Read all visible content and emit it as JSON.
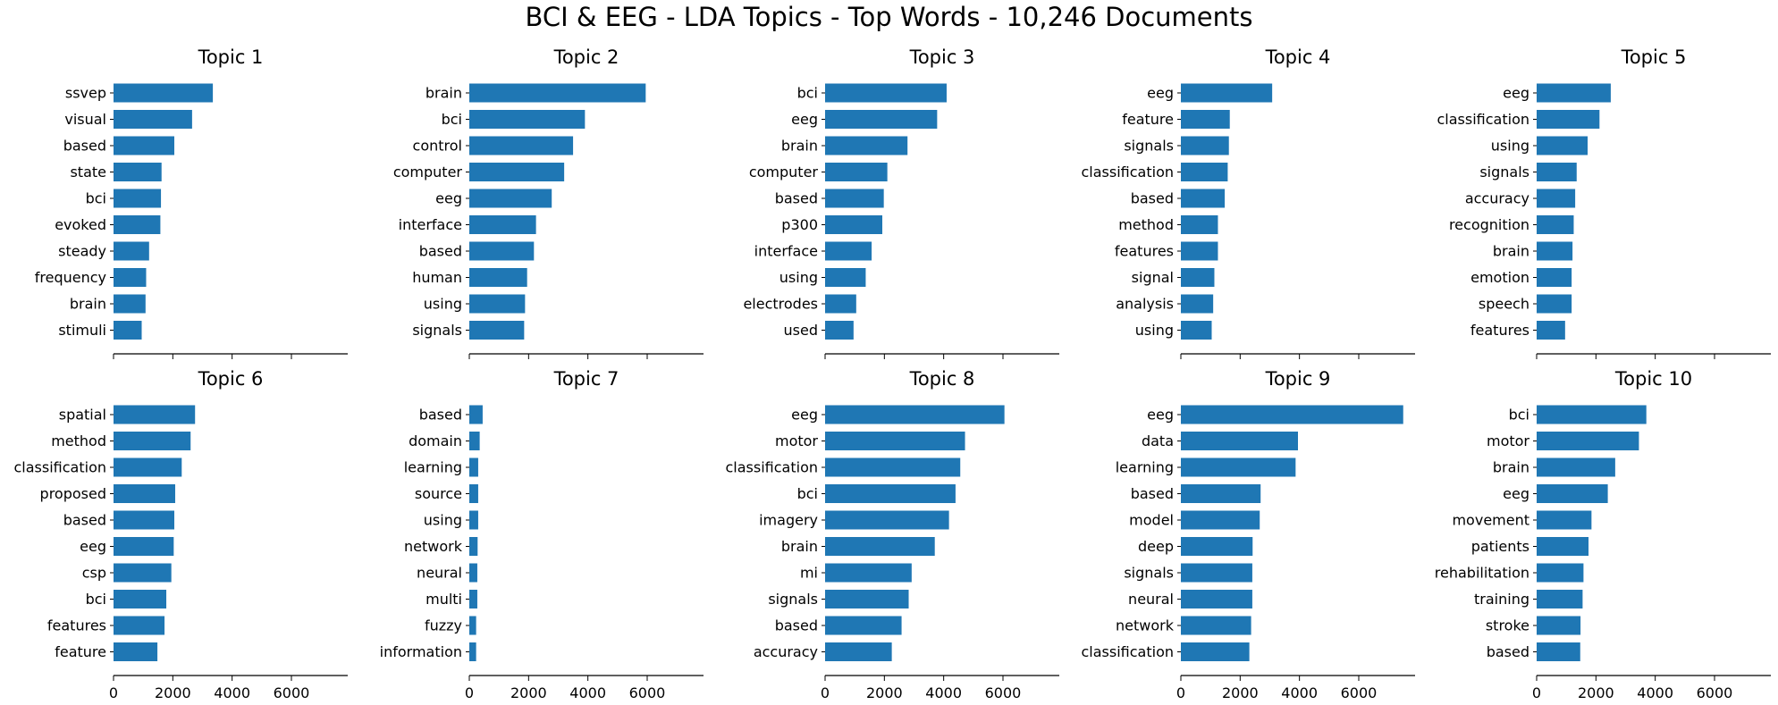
{
  "suptitle": "BCI & EEG - LDA Topics - Top Words - 10,246 Documents",
  "bar_color": "#1f77b4",
  "chart_data": [
    {
      "type": "bar",
      "orientation": "horizontal",
      "title": "Topic 1",
      "categories": [
        "ssvep",
        "visual",
        "based",
        "state",
        "bci",
        "evoked",
        "steady",
        "frequency",
        "brain",
        "stimuli"
      ],
      "values": [
        3350,
        2650,
        2050,
        1620,
        1600,
        1580,
        1200,
        1100,
        1080,
        950
      ],
      "xlim": [
        0,
        7900
      ],
      "xticks": [
        0,
        2000,
        4000,
        6000
      ]
    },
    {
      "type": "bar",
      "orientation": "horizontal",
      "title": "Topic 2",
      "categories": [
        "brain",
        "bci",
        "control",
        "computer",
        "eeg",
        "interface",
        "based",
        "human",
        "using",
        "signals"
      ],
      "values": [
        5950,
        3900,
        3500,
        3200,
        2780,
        2250,
        2180,
        1950,
        1880,
        1850
      ],
      "xlim": [
        0,
        7900
      ],
      "xticks": [
        0,
        2000,
        4000,
        6000
      ]
    },
    {
      "type": "bar",
      "orientation": "horizontal",
      "title": "Topic 3",
      "categories": [
        "bci",
        "eeg",
        "brain",
        "computer",
        "based",
        "p300",
        "interface",
        "using",
        "electrodes",
        "used"
      ],
      "values": [
        4100,
        3780,
        2780,
        2100,
        1980,
        1930,
        1570,
        1370,
        1050,
        960
      ],
      "xlim": [
        0,
        7900
      ],
      "xticks": [
        0,
        2000,
        4000,
        6000
      ]
    },
    {
      "type": "bar",
      "orientation": "horizontal",
      "title": "Topic 4",
      "categories": [
        "eeg",
        "feature",
        "signals",
        "classification",
        "based",
        "method",
        "features",
        "signal",
        "analysis",
        "using"
      ],
      "values": [
        3080,
        1650,
        1620,
        1580,
        1480,
        1250,
        1250,
        1130,
        1090,
        1040
      ],
      "xlim": [
        0,
        7900
      ],
      "xticks": [
        0,
        2000,
        4000,
        6000
      ]
    },
    {
      "type": "bar",
      "orientation": "horizontal",
      "title": "Topic 5",
      "categories": [
        "eeg",
        "classification",
        "using",
        "signals",
        "accuracy",
        "recognition",
        "brain",
        "emotion",
        "speech",
        "features"
      ],
      "values": [
        2500,
        2120,
        1720,
        1350,
        1300,
        1250,
        1210,
        1180,
        1180,
        960
      ],
      "xlim": [
        0,
        7900
      ],
      "xticks": [
        0,
        2000,
        4000,
        6000
      ]
    },
    {
      "type": "bar",
      "orientation": "horizontal",
      "title": "Topic 6",
      "categories": [
        "spatial",
        "method",
        "classification",
        "proposed",
        "based",
        "eeg",
        "csp",
        "bci",
        "features",
        "feature"
      ],
      "values": [
        2750,
        2600,
        2300,
        2080,
        2050,
        2030,
        1950,
        1780,
        1720,
        1480
      ],
      "xlim": [
        0,
        7900
      ],
      "xticks": [
        0,
        2000,
        4000,
        6000
      ]
    },
    {
      "type": "bar",
      "orientation": "horizontal",
      "title": "Topic 7",
      "categories": [
        "based",
        "domain",
        "learning",
        "source",
        "using",
        "network",
        "neural",
        "multi",
        "fuzzy",
        "information"
      ],
      "values": [
        450,
        350,
        300,
        300,
        300,
        280,
        270,
        270,
        230,
        230
      ],
      "xlim": [
        0,
        7900
      ],
      "xticks": [
        0,
        2000,
        4000,
        6000
      ]
    },
    {
      "type": "bar",
      "orientation": "horizontal",
      "title": "Topic 8",
      "categories": [
        "eeg",
        "motor",
        "classification",
        "bci",
        "imagery",
        "brain",
        "mi",
        "signals",
        "based",
        "accuracy"
      ],
      "values": [
        6050,
        4720,
        4560,
        4400,
        4180,
        3700,
        2920,
        2820,
        2580,
        2250
      ],
      "xlim": [
        0,
        7900
      ],
      "xticks": [
        0,
        2000,
        4000,
        6000
      ]
    },
    {
      "type": "bar",
      "orientation": "horizontal",
      "title": "Topic 9",
      "categories": [
        "eeg",
        "data",
        "learning",
        "based",
        "model",
        "deep",
        "signals",
        "neural",
        "network",
        "classification"
      ],
      "values": [
        7500,
        3950,
        3870,
        2690,
        2660,
        2420,
        2410,
        2410,
        2370,
        2310
      ],
      "xlim": [
        0,
        7900
      ],
      "xticks": [
        0,
        2000,
        4000,
        6000
      ]
    },
    {
      "type": "bar",
      "orientation": "horizontal",
      "title": "Topic 10",
      "categories": [
        "bci",
        "motor",
        "brain",
        "eeg",
        "movement",
        "patients",
        "rehabilitation",
        "training",
        "stroke",
        "based"
      ],
      "values": [
        3700,
        3450,
        2650,
        2400,
        1850,
        1750,
        1580,
        1550,
        1480,
        1470
      ],
      "xlim": [
        0,
        7900
      ],
      "xticks": [
        0,
        2000,
        4000,
        6000
      ]
    }
  ]
}
